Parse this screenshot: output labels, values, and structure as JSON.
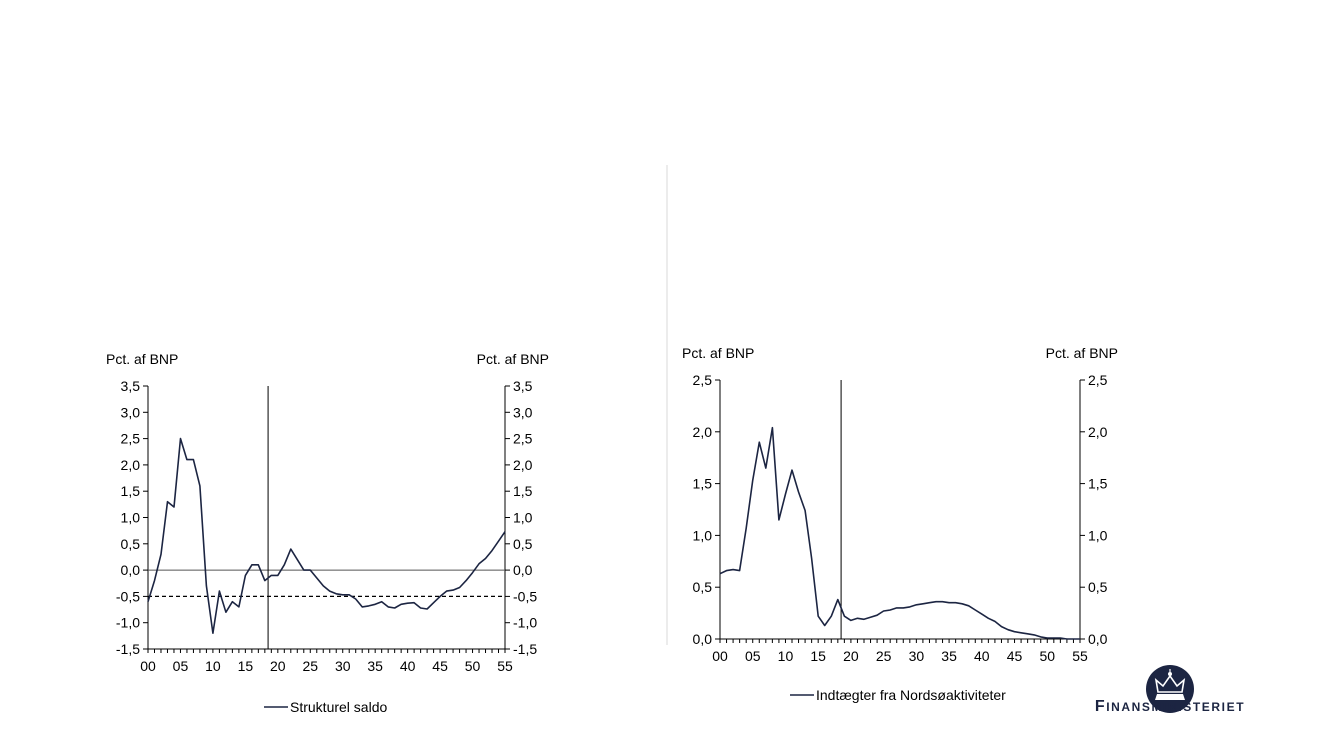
{
  "logo": {
    "text": "Finansministeriet"
  },
  "chart_data": [
    {
      "type": "line",
      "ylabel_left": "Pct. af BNP",
      "ylabel_right": "Pct. af BNP",
      "ylim": [
        -1.5,
        3.5
      ],
      "yticks": [
        "3,5",
        "3,0",
        "2,5",
        "2,0",
        "1,5",
        "1,0",
        "0,5",
        "0,0",
        "-0,5",
        "-1,0",
        "-1,5"
      ],
      "xlim": [
        0,
        55
      ],
      "xticks": [
        "00",
        "05",
        "10",
        "15",
        "20",
        "25",
        "30",
        "35",
        "40",
        "45",
        "50",
        "55"
      ],
      "vertical_marker_x": 18.5,
      "zero_line": 0,
      "reference_line": {
        "y": -0.5,
        "style": "dashed"
      },
      "legend": "Strukturel saldo",
      "series": [
        {
          "name": "Strukturel saldo",
          "color": "#1c2542",
          "x": [
            0,
            1,
            2,
            3,
            4,
            5,
            6,
            7,
            8,
            9,
            10,
            11,
            12,
            13,
            14,
            15,
            16,
            17,
            18,
            19,
            20,
            21,
            22,
            23,
            24,
            25,
            26,
            27,
            28,
            29,
            30,
            31,
            32,
            33,
            34,
            35,
            36,
            37,
            38,
            39,
            40,
            41,
            42,
            43,
            44,
            45,
            46,
            47,
            48,
            49,
            50,
            51,
            52,
            53,
            54,
            55
          ],
          "y": [
            -0.6,
            -0.2,
            0.3,
            1.3,
            1.2,
            2.5,
            2.1,
            2.1,
            1.6,
            -0.3,
            -1.2,
            -0.4,
            -0.8,
            -0.6,
            -0.7,
            -0.1,
            0.1,
            0.1,
            -0.2,
            -0.1,
            -0.1,
            0.1,
            0.4,
            0.2,
            0.0,
            0.0,
            -0.15,
            -0.3,
            -0.4,
            -0.45,
            -0.47,
            -0.47,
            -0.55,
            -0.7,
            -0.68,
            -0.65,
            -0.6,
            -0.7,
            -0.72,
            -0.65,
            -0.63,
            -0.62,
            -0.72,
            -0.74,
            -0.62,
            -0.5,
            -0.4,
            -0.38,
            -0.33,
            -0.2,
            -0.05,
            0.12,
            0.22,
            0.37,
            0.55,
            0.73
          ]
        }
      ]
    },
    {
      "type": "line",
      "ylabel_left": "Pct. af BNP",
      "ylabel_right": "Pct. af BNP",
      "ylim": [
        0,
        2.5
      ],
      "yticks": [
        "2,5",
        "2,0",
        "1,5",
        "1,0",
        "0,5",
        "0,0"
      ],
      "xlim": [
        0,
        55
      ],
      "xticks": [
        "00",
        "05",
        "10",
        "15",
        "20",
        "25",
        "30",
        "35",
        "40",
        "45",
        "50",
        "55"
      ],
      "vertical_marker_x": 18.5,
      "legend": "Indtægter fra Nordsøaktiviteter",
      "series": [
        {
          "name": "Indtægter fra Nordsøaktiviteter",
          "color": "#1c2542",
          "x": [
            0,
            1,
            2,
            3,
            4,
            5,
            6,
            7,
            8,
            9,
            10,
            11,
            12,
            13,
            14,
            15,
            16,
            17,
            18,
            19,
            20,
            21,
            22,
            23,
            24,
            25,
            26,
            27,
            28,
            29,
            30,
            31,
            32,
            33,
            34,
            35,
            36,
            37,
            38,
            39,
            40,
            41,
            42,
            43,
            44,
            45,
            46,
            47,
            48,
            49,
            50,
            51,
            52,
            53,
            54,
            55
          ],
          "y": [
            0.63,
            0.66,
            0.67,
            0.66,
            1.07,
            1.53,
            1.9,
            1.65,
            2.04,
            1.15,
            1.4,
            1.63,
            1.42,
            1.24,
            0.78,
            0.22,
            0.13,
            0.22,
            0.38,
            0.22,
            0.18,
            0.2,
            0.19,
            0.21,
            0.23,
            0.27,
            0.28,
            0.3,
            0.3,
            0.31,
            0.33,
            0.34,
            0.35,
            0.36,
            0.36,
            0.35,
            0.35,
            0.34,
            0.32,
            0.28,
            0.24,
            0.2,
            0.17,
            0.12,
            0.09,
            0.07,
            0.06,
            0.05,
            0.04,
            0.02,
            0.01,
            0.01,
            0.01,
            0.0,
            0.0,
            0.0
          ]
        }
      ]
    }
  ]
}
